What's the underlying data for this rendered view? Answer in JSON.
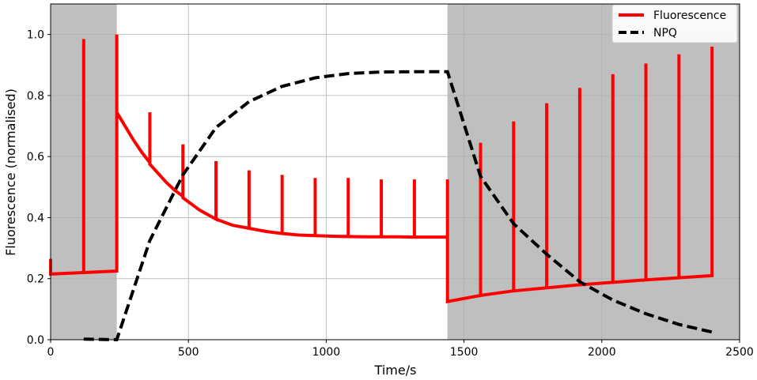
{
  "chart_data": {
    "type": "line",
    "xlabel": "Time/s",
    "ylabel": "Fluorescence (normalised)",
    "xlim": [
      0,
      2500
    ],
    "ylim": [
      0,
      1.1
    ],
    "xticks": [
      "0",
      "500",
      "1000",
      "1500",
      "2000",
      "2500"
    ],
    "yticks": [
      "0.0",
      "0.2",
      "0.4",
      "0.6",
      "0.8",
      "1.0"
    ],
    "grid": true,
    "legend_position": "top-right",
    "shaded_regions": [
      {
        "x_start": 0,
        "x_end": 240,
        "color": "#bfbfbf"
      },
      {
        "x_start": 1440,
        "x_end": 2500,
        "color": "#bfbfbf"
      }
    ],
    "series": [
      {
        "name": "Fluorescence",
        "color": "#ff0000",
        "style": "solid",
        "x": [
          0,
          0,
          0,
          120,
          120,
          120,
          240,
          240,
          240,
          270,
          300,
          330,
          360,
          360,
          360,
          390,
          420,
          450,
          480,
          480,
          480,
          510,
          540,
          570,
          600,
          600,
          600,
          660,
          720,
          720,
          720,
          780,
          840,
          840,
          840,
          900,
          960,
          960,
          960,
          1020,
          1080,
          1080,
          1080,
          1140,
          1200,
          1200,
          1200,
          1260,
          1320,
          1320,
          1320,
          1380,
          1440,
          1440,
          1440,
          1440,
          1560,
          1560,
          1560,
          1680,
          1680,
          1680,
          1800,
          1800,
          1800,
          1920,
          1920,
          1920,
          2040,
          2040,
          2040,
          2160,
          2160,
          2160,
          2280,
          2280,
          2280,
          2400,
          2400,
          2400
        ],
        "values": [
          0.265,
          0.215,
          0.215,
          0.22,
          0.985,
          0.22,
          0.225,
          1.0,
          0.745,
          0.7,
          0.655,
          0.615,
          0.58,
          0.745,
          0.575,
          0.545,
          0.515,
          0.49,
          0.47,
          0.64,
          0.465,
          0.445,
          0.425,
          0.41,
          0.395,
          0.585,
          0.395,
          0.375,
          0.365,
          0.555,
          0.365,
          0.355,
          0.348,
          0.54,
          0.348,
          0.343,
          0.341,
          0.53,
          0.341,
          0.339,
          0.338,
          0.53,
          0.338,
          0.337,
          0.337,
          0.525,
          0.337,
          0.337,
          0.336,
          0.525,
          0.336,
          0.336,
          0.336,
          0.525,
          0.336,
          0.125,
          0.145,
          0.645,
          0.145,
          0.16,
          0.715,
          0.16,
          0.17,
          0.775,
          0.17,
          0.18,
          0.825,
          0.18,
          0.188,
          0.87,
          0.188,
          0.196,
          0.905,
          0.196,
          0.203,
          0.935,
          0.203,
          0.21,
          0.96,
          0.21
        ]
      },
      {
        "name": "NPQ",
        "color": "#000000",
        "style": "dashed",
        "x": [
          120,
          240,
          240,
          360,
          480,
          600,
          720,
          840,
          960,
          1080,
          1200,
          1320,
          1440,
          1440,
          1560,
          1680,
          1800,
          1920,
          2040,
          2160,
          2280,
          2400
        ],
        "values": [
          0.002,
          0.0,
          0.0,
          0.325,
          0.54,
          0.695,
          0.78,
          0.83,
          0.858,
          0.872,
          0.877,
          0.878,
          0.878,
          0.878,
          0.535,
          0.38,
          0.28,
          0.19,
          0.13,
          0.085,
          0.05,
          0.025
        ]
      }
    ]
  }
}
